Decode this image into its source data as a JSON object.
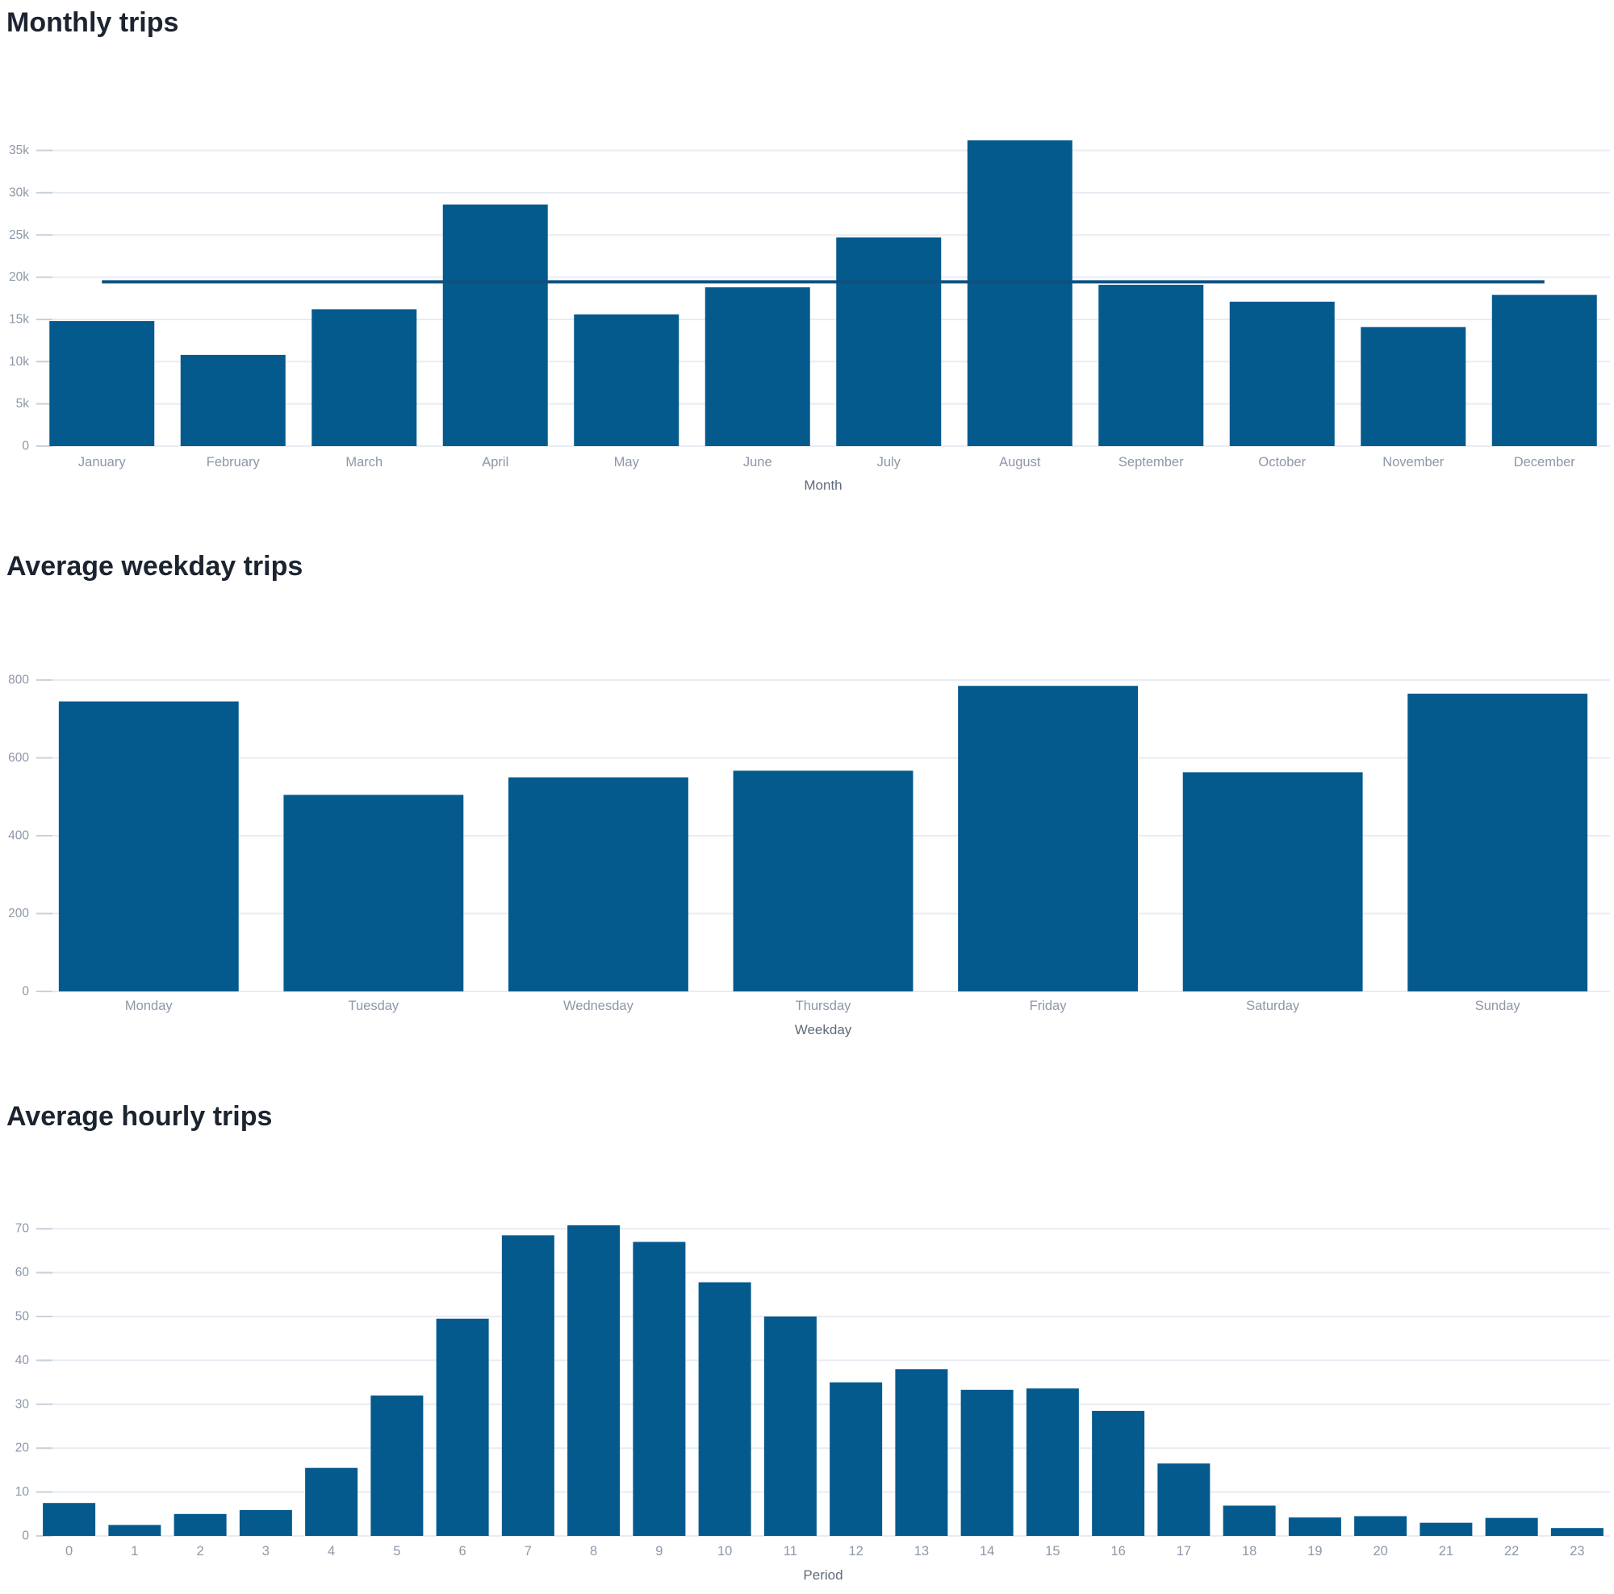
{
  "colors": {
    "background": "#ffffff",
    "bar": "#045a8d",
    "reference_line": "#0e5180",
    "grid": "#e8ecf3",
    "tick_mark": "#c9d2dc",
    "tick_label": "#8d97a8",
    "axis_title": "#5f6b7a",
    "title": "#1b2430"
  },
  "chart_data": [
    {
      "type": "bar",
      "title": "Monthly trips",
      "xlabel": "Month",
      "ylabel": "",
      "categories": [
        "January",
        "February",
        "March",
        "April",
        "May",
        "June",
        "July",
        "August",
        "September",
        "October",
        "November",
        "December"
      ],
      "values": [
        14800,
        10800,
        16200,
        28600,
        15600,
        18800,
        24700,
        36200,
        19100,
        17100,
        14100,
        17900
      ],
      "reference_line_y": 19450,
      "ytick_values": [
        0,
        5000,
        10000,
        15000,
        20000,
        25000,
        30000,
        35000
      ],
      "ytick_labels": [
        "0",
        "5k",
        "10k",
        "15k",
        "20k",
        "25k",
        "30k",
        "35k"
      ],
      "ylim": [
        0,
        40000
      ],
      "grid": true,
      "legend": false
    },
    {
      "type": "bar",
      "title": "Average weekday trips",
      "xlabel": "Weekday",
      "ylabel": "",
      "categories": [
        "Monday",
        "Tuesday",
        "Wednesday",
        "Thursday",
        "Friday",
        "Saturday",
        "Sunday"
      ],
      "values": [
        745,
        505,
        550,
        567,
        785,
        563,
        765
      ],
      "ytick_values": [
        0,
        200,
        400,
        600,
        800
      ],
      "ytick_labels": [
        "0",
        "200",
        "400",
        "600",
        "800"
      ],
      "ylim": [
        0,
        900
      ],
      "grid": true,
      "legend": false
    },
    {
      "type": "bar",
      "title": "Average hourly trips",
      "xlabel": "Period",
      "ylabel": "",
      "categories": [
        "0",
        "1",
        "2",
        "3",
        "4",
        "5",
        "6",
        "7",
        "8",
        "9",
        "10",
        "11",
        "12",
        "13",
        "14",
        "15",
        "16",
        "17",
        "18",
        "19",
        "20",
        "21",
        "22",
        "23"
      ],
      "values": [
        7.5,
        2.5,
        5.0,
        5.9,
        15.5,
        32.0,
        49.5,
        68.5,
        70.8,
        67.0,
        57.8,
        50.0,
        35.0,
        38.0,
        33.3,
        33.6,
        28.5,
        16.5,
        6.9,
        4.2,
        4.5,
        3.0,
        4.1,
        1.8
      ],
      "ytick_values": [
        0,
        10,
        20,
        30,
        40,
        50,
        60,
        70
      ],
      "ytick_labels": [
        "0",
        "10",
        "20",
        "30",
        "40",
        "50",
        "60",
        "70"
      ],
      "ylim": [
        0,
        80
      ],
      "grid": true,
      "legend": false
    }
  ]
}
